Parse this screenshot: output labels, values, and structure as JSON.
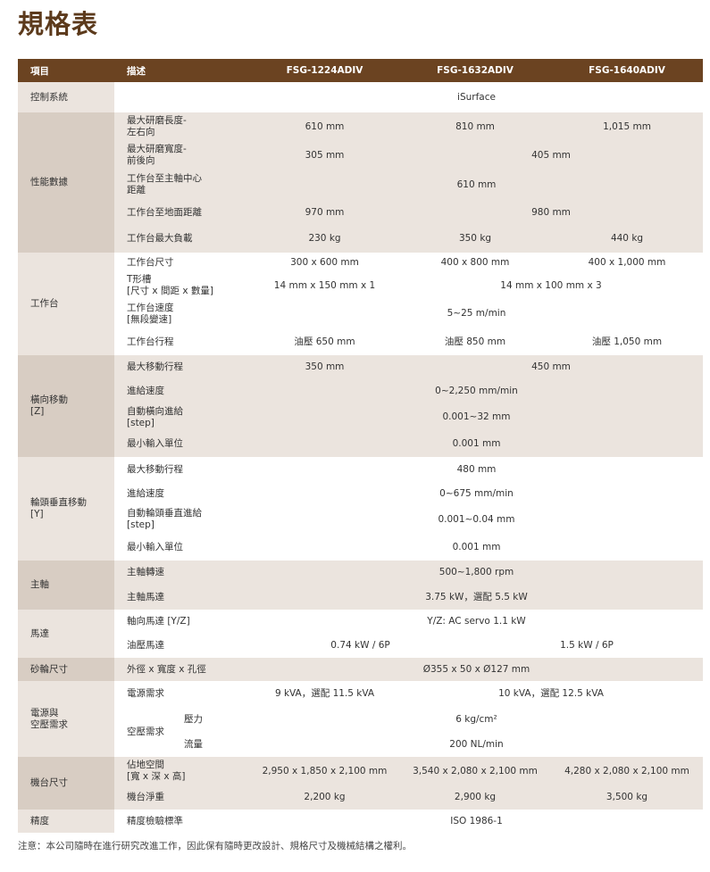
{
  "title": "規格表",
  "header": {
    "item": "項目",
    "desc": "描述",
    "models": [
      "FSG-1224ADIV",
      "FSG-1632ADIV",
      "FSG-1640ADIV"
    ]
  },
  "control": {
    "group": "控制系統",
    "value": "iSurface"
  },
  "performance": {
    "group": "性能數據",
    "r1": {
      "d": "最大研磨長度-\n左右向",
      "v": [
        "610 mm",
        "810 mm",
        "1,015 mm"
      ]
    },
    "r2": {
      "d": "最大研磨寬度-\n前後向",
      "v": [
        "305 mm",
        "405 mm"
      ]
    },
    "r3": {
      "d": "工作台至主軸中心\n距離",
      "v": "610 mm"
    },
    "r4": {
      "d": "工作台至地面距離",
      "v": [
        "970 mm",
        "980 mm"
      ]
    },
    "r5": {
      "d": "工作台最大負載",
      "v": [
        "230 kg",
        "350 kg",
        "440 kg"
      ]
    }
  },
  "table": {
    "group": "工作台",
    "r1": {
      "d": "工作台尺寸",
      "v": [
        "300 x 600 mm",
        "400 x 800 mm",
        "400 x 1,000 mm"
      ]
    },
    "r2": {
      "d": "T形槽\n[尺寸 x 間距 x 數量]",
      "v": [
        "14 mm x 150 mm x 1",
        "14 mm x 100 mm x 3"
      ]
    },
    "r3": {
      "d": "工作台速度\n[無段變速]",
      "v": "5~25 m/min"
    },
    "r4": {
      "d": "工作台行程",
      "v": [
        "油壓 650 mm",
        "油壓 850 mm",
        "油壓 1,050 mm"
      ]
    }
  },
  "cross": {
    "group": "橫向移動\n[Z]",
    "r1": {
      "d": "最大移動行程",
      "v": [
        "350 mm",
        "450 mm"
      ]
    },
    "r2": {
      "d": "進給速度",
      "v": "0~2,250 mm/min"
    },
    "r3": {
      "d": "自動橫向進給\n[step]",
      "v": "0.001~32 mm"
    },
    "r4": {
      "d": "最小輸入單位",
      "v": "0.001 mm"
    }
  },
  "vertical": {
    "group": "輪頭垂直移動\n[Y]",
    "r1": {
      "d": "最大移動行程",
      "v": "480 mm"
    },
    "r2": {
      "d": "進給速度",
      "v": "0~675 mm/min"
    },
    "r3": {
      "d": "自動輪頭垂直進給\n[step]",
      "v": "0.001~0.04 mm"
    },
    "r4": {
      "d": "最小輸入單位",
      "v": "0.001 mm"
    }
  },
  "spindle": {
    "group": "主軸",
    "r1": {
      "d": "主軸轉速",
      "v": "500~1,800 rpm"
    },
    "r2": {
      "d": "主軸馬達",
      "v": "3.75 kW，選配 5.5 kW"
    }
  },
  "motor": {
    "group": "馬達",
    "r1": {
      "d": "軸向馬達 [Y/Z]",
      "v": "Y/Z: AC servo 1.1 kW"
    },
    "r2": {
      "d": "油壓馬達",
      "v": [
        "0.74 kW / 6P",
        "1.5 kW / 6P"
      ]
    }
  },
  "wheel": {
    "group": "砂輪尺寸",
    "d": "外徑 x 寬度 x 孔徑",
    "v": "Ø355 x 50 x Ø127 mm"
  },
  "power": {
    "group": "電源與\n空壓需求",
    "r1": {
      "d": "電源需求",
      "v": [
        "9 kVA，選配 11.5 kVA",
        "10 kVA，選配 12.5 kVA"
      ]
    },
    "air": "空壓需求",
    "r2": {
      "d": "壓力",
      "v": "6 kg/cm²"
    },
    "r3": {
      "d": "流量",
      "v": "200 NL/min"
    }
  },
  "machine": {
    "group": "機台尺寸",
    "r1": {
      "d": "佔地空間\n[寬 x 深 x 高]",
      "v": [
        "2,950 x 1,850 x 2,100 mm",
        "3,540 x 2,080 x 2,100 mm",
        "4,280 x 2,080 x 2,100 mm"
      ]
    },
    "r2": {
      "d": "機台淨重",
      "v": [
        "2,200 kg",
        "2,900 kg",
        "3,500 kg"
      ]
    }
  },
  "accuracy": {
    "group": "精度",
    "d": "精度檢驗標準",
    "v": "ISO 1986-1"
  },
  "note": "注意：本公司隨時在進行研究改進工作，因此保有隨時更改設計、規格尺寸及機械結構之權利。",
  "colors": {
    "header": "#6b4321",
    "title": "#5c3a1c",
    "group_dark": "#d8cdc3",
    "row_light": "#ebe4de"
  }
}
